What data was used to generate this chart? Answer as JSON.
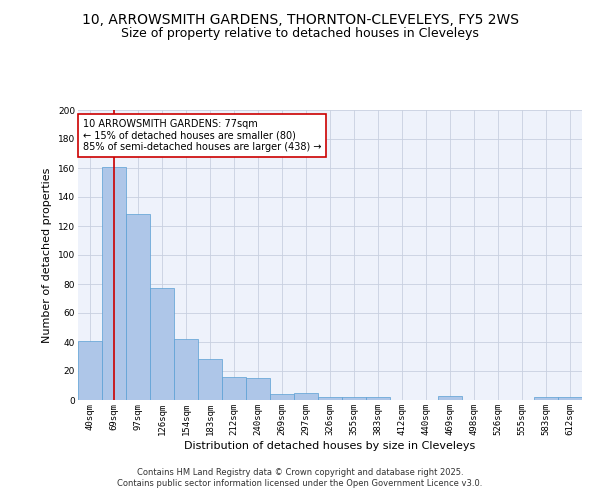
{
  "title_line1": "10, ARROWSMITH GARDENS, THORNTON-CLEVELEYS, FY5 2WS",
  "title_line2": "Size of property relative to detached houses in Cleveleys",
  "xlabel": "Distribution of detached houses by size in Cleveleys",
  "ylabel": "Number of detached properties",
  "categories": [
    "40sqm",
    "69sqm",
    "97sqm",
    "126sqm",
    "154sqm",
    "183sqm",
    "212sqm",
    "240sqm",
    "269sqm",
    "297sqm",
    "326sqm",
    "355sqm",
    "383sqm",
    "412sqm",
    "440sqm",
    "469sqm",
    "498sqm",
    "526sqm",
    "555sqm",
    "583sqm",
    "612sqm"
  ],
  "values": [
    41,
    161,
    128,
    77,
    42,
    28,
    16,
    15,
    4,
    5,
    2,
    2,
    2,
    0,
    0,
    3,
    0,
    0,
    0,
    2,
    2
  ],
  "bar_color": "#aec6e8",
  "bar_edge_color": "#5a9fd4",
  "vline_x": 1,
  "vline_color": "#cc0000",
  "annotation_text": "10 ARROWSMITH GARDENS: 77sqm\n← 15% of detached houses are smaller (80)\n85% of semi-detached houses are larger (438) →",
  "annotation_box_color": "#ffffff",
  "annotation_border_color": "#cc0000",
  "ylim": [
    0,
    200
  ],
  "yticks": [
    0,
    20,
    40,
    60,
    80,
    100,
    120,
    140,
    160,
    180,
    200
  ],
  "footer_line1": "Contains HM Land Registry data © Crown copyright and database right 2025.",
  "footer_line2": "Contains public sector information licensed under the Open Government Licence v3.0.",
  "bg_color": "#eef2fb",
  "grid_color": "#c8d0e0",
  "title_fontsize": 10,
  "subtitle_fontsize": 9,
  "axis_label_fontsize": 8,
  "tick_fontsize": 6.5,
  "annotation_fontsize": 7,
  "footer_fontsize": 6
}
